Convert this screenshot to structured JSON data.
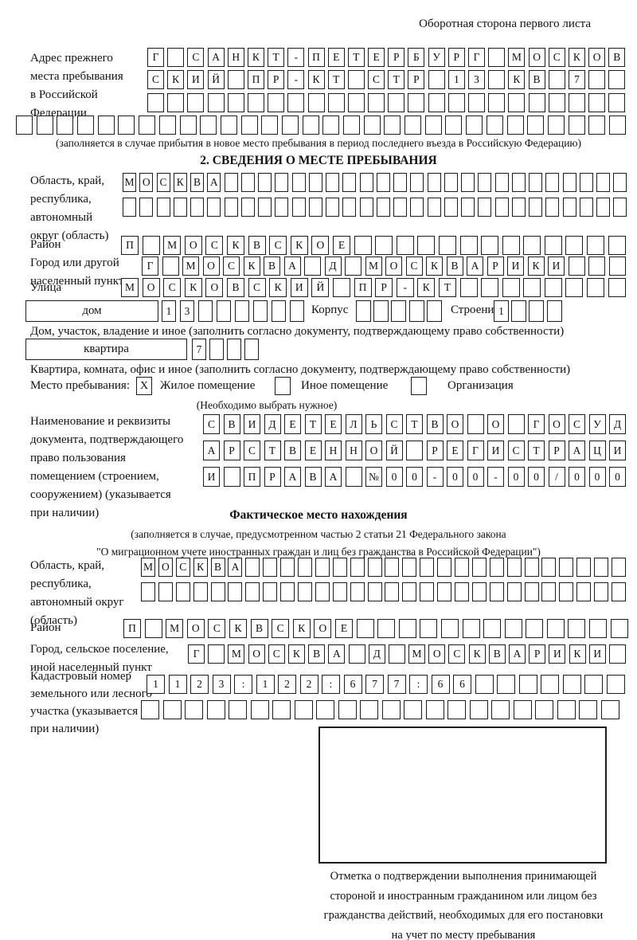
{
  "header": {
    "note": "Оборотная сторона первого листа"
  },
  "prev_address": {
    "label_lines": [
      "Адрес прежнего",
      "места пребывания",
      "в Российской",
      "Федерации"
    ],
    "rows": {
      "r1": {
        "text": "Г САНКТ-ПЕТЕРБУРГ МОСКОВ",
        "len": 24
      },
      "r2": {
        "text": "СКИЙ ПР-КТ СТР 13 КВ 7",
        "len": 24
      },
      "r3": {
        "text": "",
        "len": 24
      },
      "r4": {
        "text": "",
        "len": 30
      }
    },
    "note": "(заполняется в случае прибытия в новое место пребывания в период последнего въезда в Российскую Федерацию)"
  },
  "section2": {
    "title": "2. СВЕДЕНИЯ О МЕСТЕ ПРЕБЫВАНИЯ",
    "region": {
      "label_lines": [
        "Область, край,",
        "республика,",
        "автономный",
        "округ (область)"
      ],
      "row1": {
        "text": "МОСКВА",
        "len": 30
      },
      "row2": {
        "text": "",
        "len": 30
      }
    },
    "district": {
      "label": "Район",
      "row": {
        "text": "П МОСКВСКОЕ",
        "len": 24
      }
    },
    "city": {
      "label_lines": [
        "Город или другой",
        "населенный пункт"
      ],
      "row": {
        "text": "Г МОСКВА Д МОСКВАРИКИ",
        "len": 24
      }
    },
    "street": {
      "label": "Улица",
      "row": {
        "text": "МОСКОВСКИЙ ПР-КТ",
        "len": 24
      }
    },
    "house": {
      "box_label": "дом",
      "cells": {
        "text": "13",
        "len": 8
      },
      "korpus_label": "Корпус",
      "korpus_cells": {
        "text": "",
        "len": 5
      },
      "stroenie_label": "Строение",
      "stroenie_cells": {
        "text": "1",
        "len": 4
      }
    },
    "house_note": "Дом, участок, владение и иное (заполнить согласно документу, подтверждающему право собственности)",
    "apartment": {
      "box_label": "квартира",
      "cells": {
        "text": "7",
        "len": 4
      }
    },
    "apartment_note": "Квартира, комната, офис и иное (заполнить согласно документу, подтверждающему право собственности)",
    "stay_place": {
      "label": "Место пребывания:",
      "options": [
        {
          "label": "Жилое помещение",
          "mark": "X"
        },
        {
          "label": "Иное помещение",
          "mark": ""
        },
        {
          "label": "Организация",
          "mark": ""
        }
      ],
      "note": "(Необходимо выбрать нужное)"
    },
    "doc": {
      "label_lines": [
        "Наименование и реквизиты",
        "документа, подтверждающего",
        "право пользования",
        "помещением (строением,",
        "сооружением) (указывается",
        "при наличии)"
      ],
      "row1": {
        "text": "СВИДЕТЕЛЬСТВО О ГОСУД",
        "len": 21
      },
      "row2": {
        "text": "АРСТВЕННОЙ РЕГИСТРАЦИ",
        "len": 21
      },
      "row3": {
        "text": "И ПРАВА №00-00-00/000",
        "len": 21
      }
    }
  },
  "fact": {
    "title": "Фактическое место нахождения",
    "note_lines": [
      "(заполняется в случае, предусмотренном частью 2 статьи 21 Федерального закона",
      "\"О миграционном учете иностранных граждан и лиц без гражданства в Российской Федерации\")"
    ],
    "region": {
      "label_lines": [
        "Область, край,",
        "республика,",
        "автономный округ",
        "(область)"
      ],
      "row1": {
        "text": "МОСКВА",
        "len": 28
      },
      "row2": {
        "text": "",
        "len": 28
      }
    },
    "district": {
      "label": "Район",
      "row": {
        "text": "П МОСКВСКОЕ",
        "len": 24
      }
    },
    "city": {
      "label_lines": [
        "Город, сельское поселение,",
        "иной населенный пункт"
      ],
      "row": {
        "text": "Г МОСКВА Д МОСКВАРИКИ",
        "len": 22
      }
    },
    "cadastre": {
      "label_lines": [
        "Кадастровый номер",
        "земельного или лесного",
        "участка (указывается",
        "при наличии)"
      ],
      "row1": {
        "text": "1123:122:677:66",
        "len": 22
      },
      "row2": {
        "text": "",
        "len": 22
      }
    },
    "stamp_note_lines": [
      "Отметка о подтверждении выполнения принимающей",
      "стороной и иностранным гражданином или лицом без",
      "гражданства действий, необходимых для его постановки",
      "на учет по месту пребывания"
    ]
  }
}
